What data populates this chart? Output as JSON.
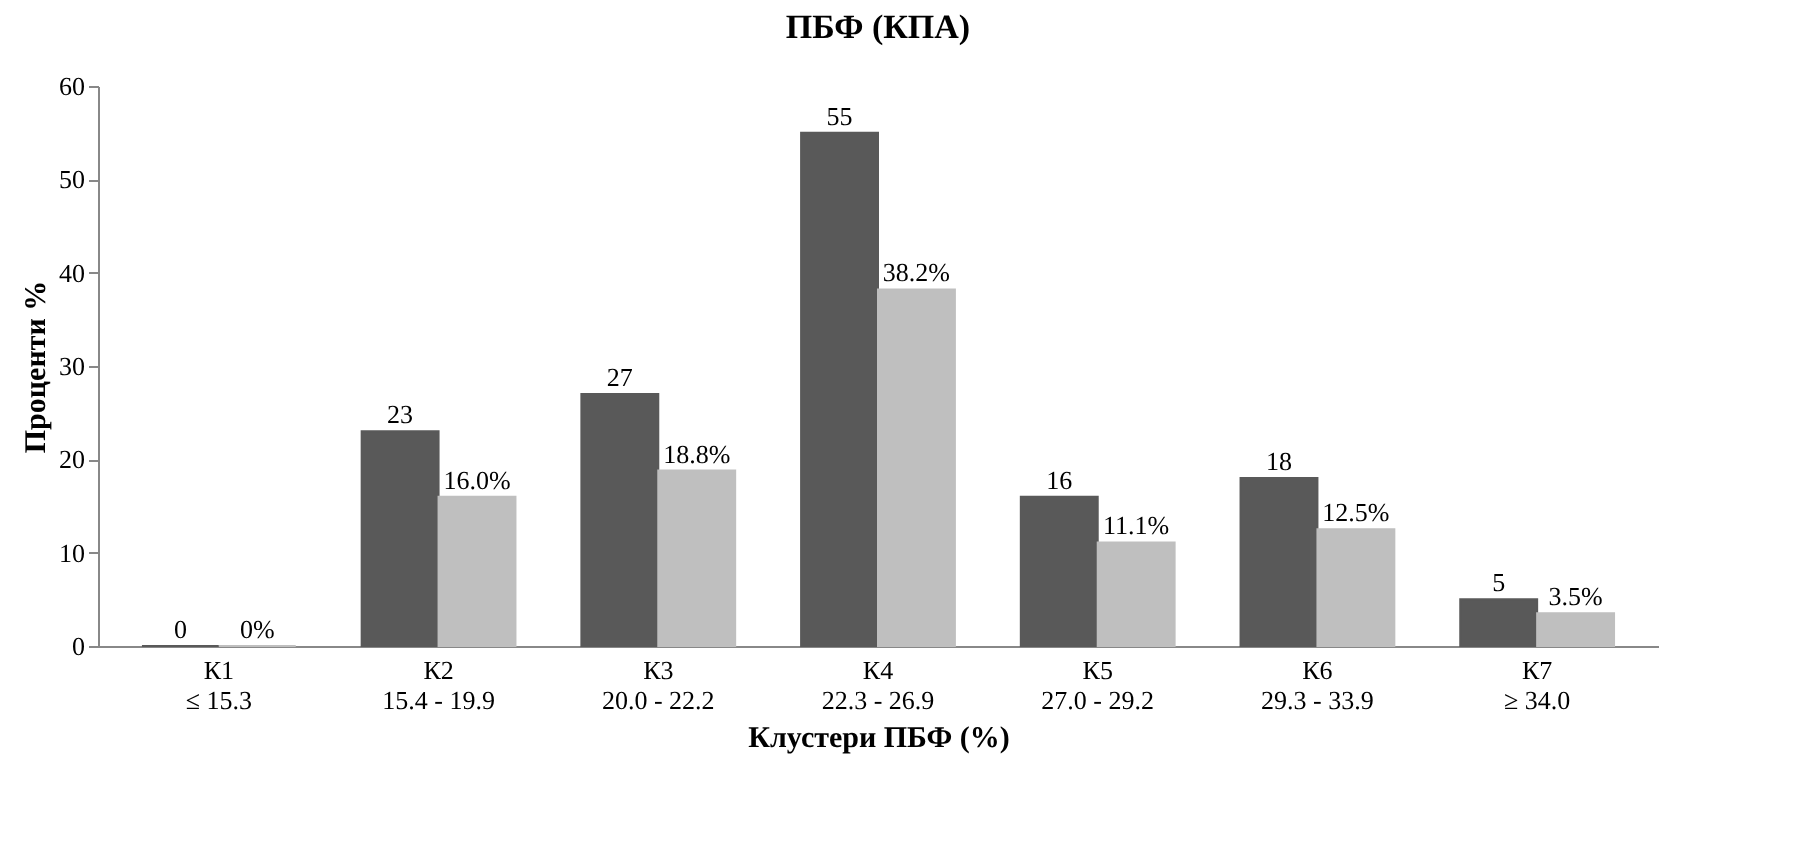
{
  "chart_data": {
    "type": "bar",
    "title": "ПБФ  (КПА)",
    "xlabel": "Клустери ПБФ (%)",
    "ylabel": "Проценти %",
    "categories": [
      "К1\n≤ 15.3",
      "К2\n15.4 - 19.9",
      "К3\n20.0 - 22.2",
      "К4\n22.3 - 26.9",
      "К5\n27.0 - 29.2",
      "К6\n29.3 - 33.9",
      "К7\n≥ 34.0"
    ],
    "series": [
      {
        "color": "#595959",
        "values": [
          0,
          23,
          27,
          55,
          16,
          18,
          5
        ],
        "value_labels": [
          "0",
          "23",
          "27",
          "55",
          "16",
          "18",
          "5"
        ]
      },
      {
        "color": "#bfbfbf",
        "values": [
          0,
          16.0,
          18.8,
          38.2,
          11.1,
          12.5,
          3.5
        ],
        "value_labels": [
          "0%",
          "16.0%",
          "18.8%",
          "38.2%",
          "11.1%",
          "12.5%",
          "3.5%"
        ]
      }
    ],
    "ylim": [
      0,
      60
    ],
    "yticks": [
      0,
      10,
      20,
      30,
      40,
      50,
      60
    ],
    "grid": false,
    "legend": false
  }
}
